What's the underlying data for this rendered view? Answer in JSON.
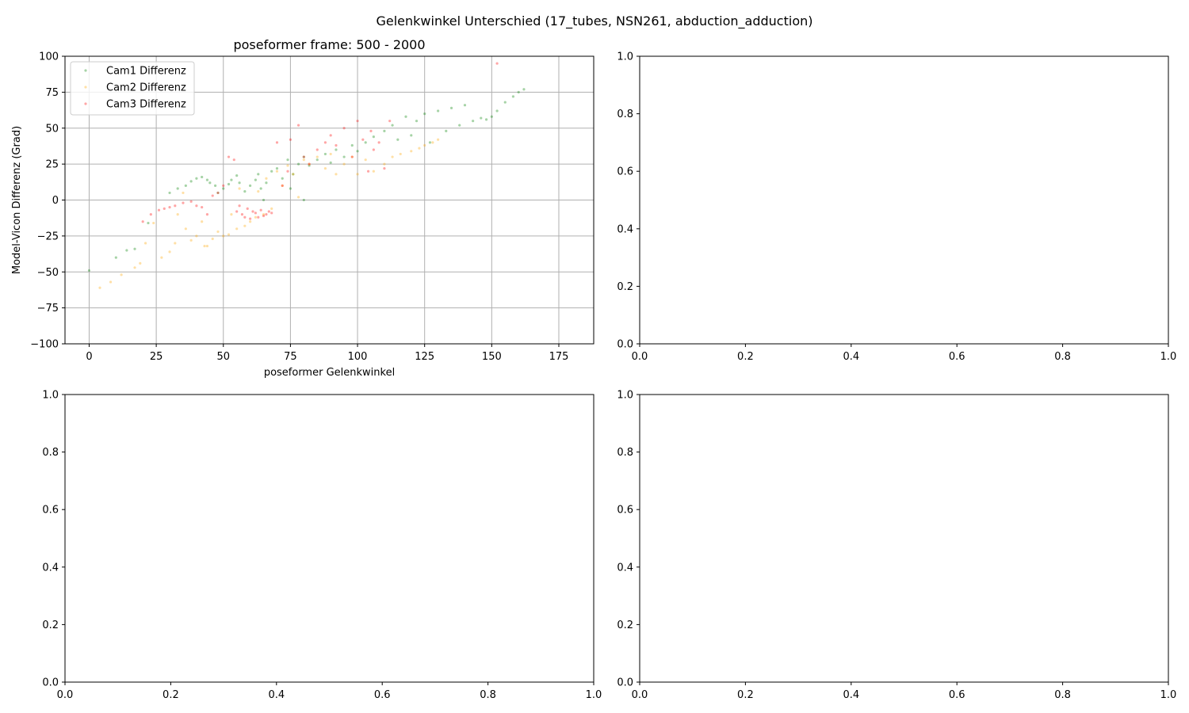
{
  "figure": {
    "suptitle": "Gelenkwinkel Unterschied (17_tubes, NSN261, abduction_adduction)"
  },
  "chart_data": [
    {
      "type": "scatter",
      "title": "poseformer frame: 500 - 2000",
      "xlabel": "poseformer Gelenkwinkel",
      "ylabel": "Model-Vicon Differenz (Grad)",
      "xlim": [
        -9,
        188
      ],
      "ylim": [
        -100,
        100
      ],
      "xticks": [
        0,
        25,
        50,
        75,
        100,
        125,
        150,
        175
      ],
      "yticks": [
        -100,
        -75,
        -50,
        -25,
        0,
        25,
        50,
        75,
        100
      ],
      "grid": true,
      "legend_position": "upper-left",
      "series": [
        {
          "name": "Cam1 Differenz",
          "color": "#008000",
          "x": [
            0,
            10,
            14,
            17,
            22,
            30,
            33,
            36,
            38,
            40,
            42,
            44,
            45,
            47,
            48,
            50,
            52,
            53,
            55,
            56,
            58,
            60,
            62,
            63,
            64,
            65,
            66,
            68,
            70,
            72,
            74,
            75,
            76,
            78,
            80,
            80,
            82,
            85,
            88,
            90,
            92,
            95,
            98,
            100,
            103,
            106,
            110,
            113,
            115,
            118,
            120,
            122,
            125,
            127,
            130,
            133,
            135,
            138,
            140,
            143,
            146,
            148,
            150,
            152,
            155,
            158,
            160,
            162
          ],
          "y": [
            -49,
            -40,
            -35,
            -34,
            -16,
            5,
            8,
            10,
            13,
            15,
            16,
            14,
            12,
            10,
            5,
            8,
            11,
            14,
            17,
            12,
            6,
            10,
            14,
            18,
            8,
            0,
            12,
            20,
            22,
            15,
            28,
            8,
            18,
            25,
            0,
            30,
            24,
            28,
            32,
            26,
            35,
            30,
            38,
            34,
            40,
            44,
            48,
            52,
            42,
            58,
            45,
            55,
            60,
            40,
            62,
            48,
            64,
            52,
            66,
            55,
            57,
            56,
            58,
            62,
            68,
            72,
            75,
            77
          ]
        },
        {
          "name": "Cam2 Differenz",
          "color": "#ffa500",
          "x": [
            4,
            8,
            12,
            17,
            19,
            21,
            24,
            27,
            30,
            32,
            33,
            35,
            36,
            38,
            40,
            42,
            43,
            44,
            46,
            48,
            50,
            52,
            53,
            55,
            56,
            58,
            60,
            62,
            63,
            65,
            66,
            68,
            70,
            72,
            74,
            76,
            78,
            80,
            82,
            85,
            88,
            90,
            92,
            95,
            98,
            100,
            103,
            106,
            110,
            113,
            116,
            120,
            123,
            125,
            128,
            130
          ],
          "y": [
            -61,
            -57,
            -52,
            -47,
            -44,
            -30,
            -16,
            -40,
            -36,
            -30,
            -10,
            5,
            -20,
            -28,
            -25,
            -15,
            -32,
            -32,
            -27,
            -22,
            -25,
            -24,
            -10,
            -20,
            8,
            -18,
            -15,
            -12,
            6,
            -10,
            15,
            -6,
            20,
            10,
            24,
            18,
            2,
            28,
            25,
            30,
            22,
            32,
            18,
            25,
            30,
            18,
            28,
            20,
            25,
            30,
            32,
            34,
            36,
            38,
            40,
            42
          ]
        },
        {
          "name": "Cam3 Differenz",
          "color": "#ff0000",
          "x": [
            20,
            23,
            26,
            28,
            30,
            32,
            35,
            38,
            40,
            42,
            44,
            46,
            48,
            50,
            52,
            54,
            55,
            56,
            57,
            58,
            59,
            60,
            61,
            62,
            63,
            64,
            65,
            66,
            67,
            68,
            70,
            72,
            74,
            75,
            78,
            80,
            82,
            85,
            88,
            90,
            92,
            95,
            98,
            100,
            102,
            104,
            105,
            106,
            108,
            110,
            112,
            152
          ],
          "y": [
            -15,
            -10,
            -7,
            -6,
            -5,
            -4,
            -2,
            -1,
            -4,
            -5,
            -10,
            3,
            5,
            10,
            30,
            28,
            -8,
            -4,
            -10,
            -12,
            -6,
            -13,
            -8,
            -9,
            -12,
            -7,
            -11,
            -10,
            -8,
            -9,
            40,
            10,
            20,
            42,
            52,
            30,
            25,
            35,
            40,
            45,
            38,
            50,
            30,
            55,
            42,
            20,
            48,
            35,
            40,
            22,
            55,
            95
          ]
        }
      ]
    },
    {
      "type": "scatter",
      "xlim": [
        0,
        1
      ],
      "ylim": [
        0,
        1
      ],
      "xticks": [
        0.0,
        0.2,
        0.4,
        0.6,
        0.8,
        1.0
      ],
      "yticks": [
        0.0,
        0.2,
        0.4,
        0.6,
        0.8,
        1.0
      ],
      "xtick_labels": [
        "0.0",
        "0.2",
        "0.4",
        "0.6",
        "0.8",
        "1.0"
      ],
      "ytick_labels": [
        "0.0",
        "0.2",
        "0.4",
        "0.6",
        "0.8",
        "1.0"
      ],
      "grid": false,
      "series": []
    },
    {
      "type": "scatter",
      "xlim": [
        0,
        1
      ],
      "ylim": [
        0,
        1
      ],
      "xticks": [
        0.0,
        0.2,
        0.4,
        0.6,
        0.8,
        1.0
      ],
      "yticks": [
        0.0,
        0.2,
        0.4,
        0.6,
        0.8,
        1.0
      ],
      "xtick_labels": [
        "0.0",
        "0.2",
        "0.4",
        "0.6",
        "0.8",
        "1.0"
      ],
      "ytick_labels": [
        "0.0",
        "0.2",
        "0.4",
        "0.6",
        "0.8",
        "1.0"
      ],
      "grid": false,
      "series": []
    },
    {
      "type": "scatter",
      "xlim": [
        0,
        1
      ],
      "ylim": [
        0,
        1
      ],
      "xticks": [
        0.0,
        0.2,
        0.4,
        0.6,
        0.8,
        1.0
      ],
      "yticks": [
        0.0,
        0.2,
        0.4,
        0.6,
        0.8,
        1.0
      ],
      "xtick_labels": [
        "0.0",
        "0.2",
        "0.4",
        "0.6",
        "0.8",
        "1.0"
      ],
      "ytick_labels": [
        "0.0",
        "0.2",
        "0.4",
        "0.6",
        "0.8",
        "1.0"
      ],
      "grid": false,
      "series": []
    }
  ]
}
